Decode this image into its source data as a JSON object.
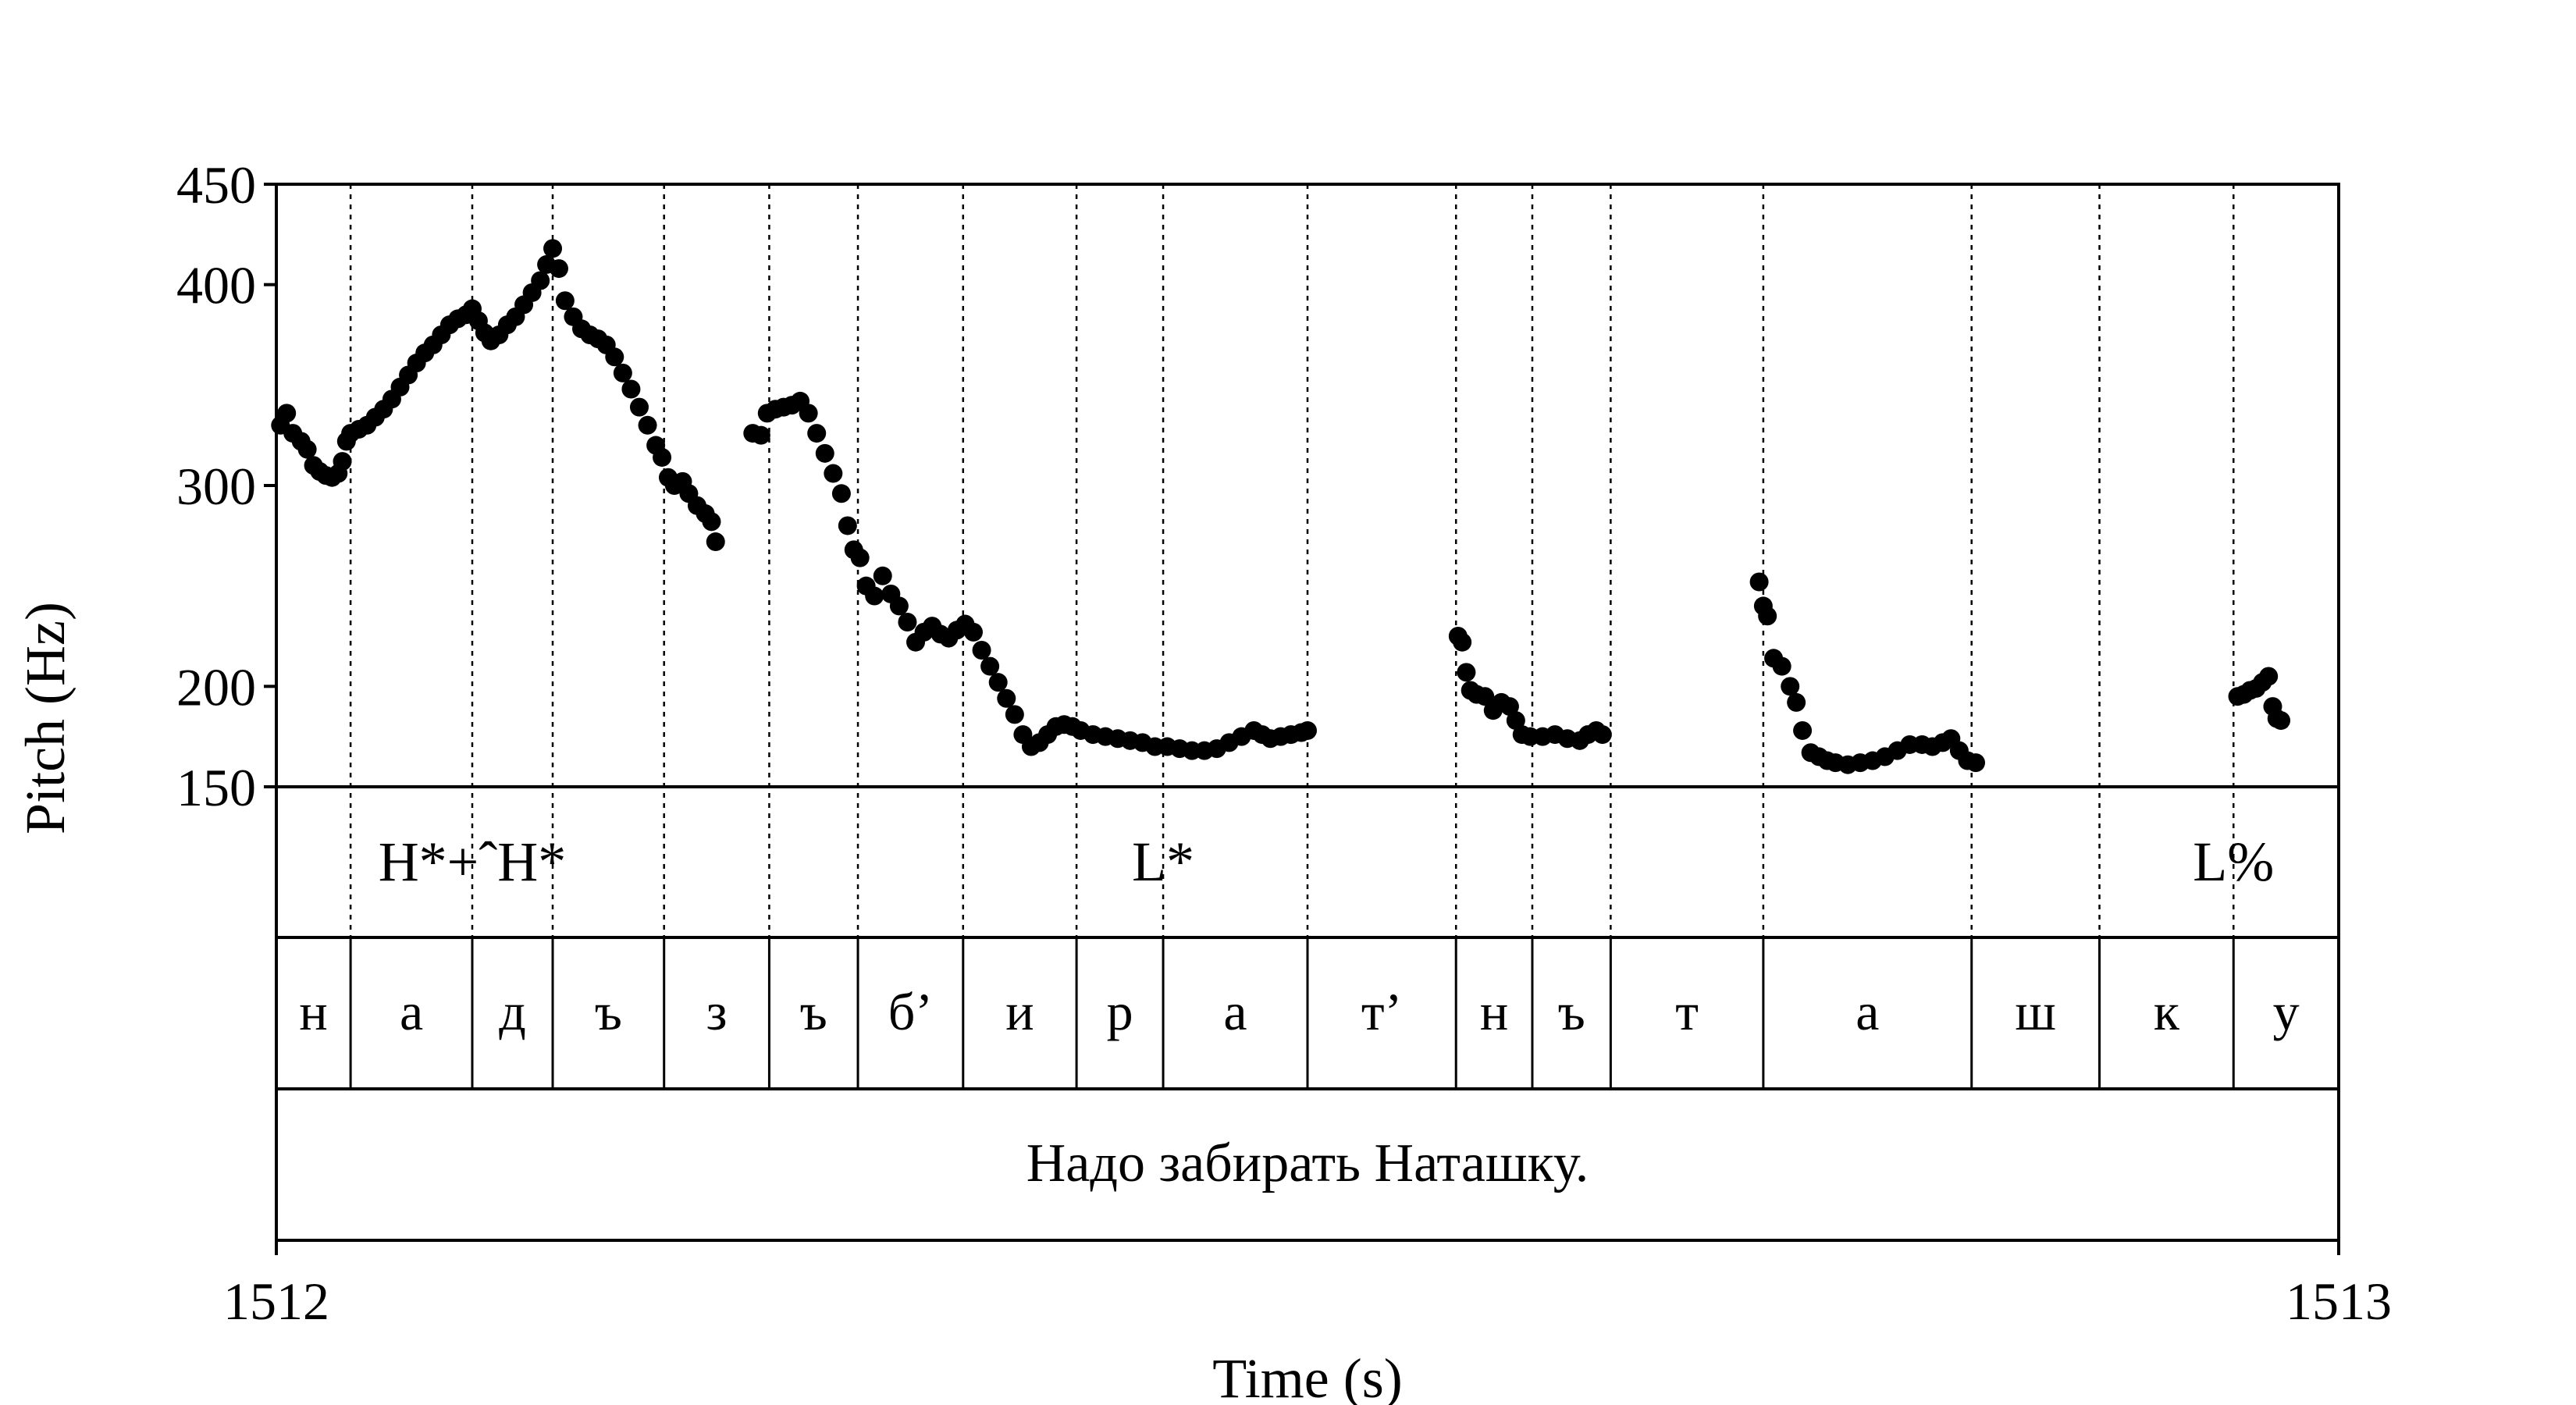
{
  "chart_data": {
    "type": "scatter",
    "xlabel": "Time (s)",
    "ylabel": "Pitch (Hz)",
    "xlim": [
      1512,
      1513
    ],
    "ylim": [
      150,
      450
    ],
    "x_ticks": [
      "1512",
      "1513"
    ],
    "y_ticks": [
      {
        "value": 150,
        "label": "150"
      },
      {
        "value": 200,
        "label": "200"
      },
      {
        "value": 300,
        "label": "300"
      },
      {
        "value": 400,
        "label": "400"
      },
      {
        "value": 450,
        "label": "450"
      }
    ],
    "boundaries": [
      1512.036,
      1512.095,
      1512.134,
      1512.188,
      1512.239,
      1512.282,
      1512.333,
      1512.388,
      1512.43,
      1512.5,
      1512.572,
      1512.609,
      1512.647,
      1512.721,
      1512.822,
      1512.884,
      1512.949
    ],
    "tones": [
      {
        "label": "H*+ˆH*",
        "t": 1512.095
      },
      {
        "label": "L*",
        "t": 1512.43
      },
      {
        "label": "L%",
        "t": 1512.949
      }
    ],
    "segments": [
      {
        "label": "н",
        "start": 1512.0,
        "end": 1512.036
      },
      {
        "label": "а",
        "start": 1512.036,
        "end": 1512.095
      },
      {
        "label": "д",
        "start": 1512.095,
        "end": 1512.134
      },
      {
        "label": "ъ",
        "start": 1512.134,
        "end": 1512.188
      },
      {
        "label": "з",
        "start": 1512.188,
        "end": 1512.239
      },
      {
        "label": "ъ",
        "start": 1512.239,
        "end": 1512.282
      },
      {
        "label": "б’",
        "start": 1512.282,
        "end": 1512.333
      },
      {
        "label": "и",
        "start": 1512.333,
        "end": 1512.388
      },
      {
        "label": "р",
        "start": 1512.388,
        "end": 1512.43
      },
      {
        "label": "а",
        "start": 1512.43,
        "end": 1512.5
      },
      {
        "label": "т’",
        "start": 1512.5,
        "end": 1512.572
      },
      {
        "label": "н",
        "start": 1512.572,
        "end": 1512.609
      },
      {
        "label": "ъ",
        "start": 1512.609,
        "end": 1512.647
      },
      {
        "label": "т",
        "start": 1512.647,
        "end": 1512.721
      },
      {
        "label": "а",
        "start": 1512.721,
        "end": 1512.822
      },
      {
        "label": "ш",
        "start": 1512.822,
        "end": 1512.884
      },
      {
        "label": "к",
        "start": 1512.884,
        "end": 1512.949
      },
      {
        "label": "у",
        "start": 1512.949,
        "end": 1513.0
      }
    ],
    "sentence": "Надо забирать Наташку.",
    "pitch_track": [
      [
        [
          1512.002,
          330
        ],
        [
          1512.005,
          336
        ],
        [
          1512.008,
          326
        ],
        [
          1512.012,
          322
        ],
        [
          1512.015,
          318
        ],
        [
          1512.018,
          310
        ],
        [
          1512.021,
          307
        ],
        [
          1512.024,
          305
        ],
        [
          1512.027,
          304
        ],
        [
          1512.03,
          306
        ],
        [
          1512.032,
          312
        ],
        [
          1512.034,
          322
        ],
        [
          1512.036,
          326
        ],
        [
          1512.04,
          328
        ],
        [
          1512.044,
          330
        ],
        [
          1512.048,
          334
        ],
        [
          1512.052,
          338
        ],
        [
          1512.056,
          343
        ],
        [
          1512.06,
          349
        ],
        [
          1512.064,
          355
        ],
        [
          1512.068,
          361
        ],
        [
          1512.072,
          366
        ],
        [
          1512.076,
          370
        ],
        [
          1512.08,
          375
        ],
        [
          1512.084,
          380
        ],
        [
          1512.088,
          383
        ],
        [
          1512.092,
          385
        ],
        [
          1512.095,
          388
        ],
        [
          1512.098,
          382
        ],
        [
          1512.101,
          376
        ],
        [
          1512.104,
          372
        ],
        [
          1512.108,
          375
        ],
        [
          1512.112,
          380
        ],
        [
          1512.116,
          384
        ],
        [
          1512.12,
          390
        ],
        [
          1512.124,
          396
        ],
        [
          1512.128,
          402
        ],
        [
          1512.131,
          410
        ],
        [
          1512.134,
          418
        ],
        [
          1512.137,
          408
        ],
        [
          1512.14,
          392
        ],
        [
          1512.144,
          384
        ],
        [
          1512.148,
          378
        ],
        [
          1512.152,
          375
        ],
        [
          1512.156,
          373
        ],
        [
          1512.16,
          370
        ],
        [
          1512.164,
          364
        ],
        [
          1512.168,
          356
        ],
        [
          1512.172,
          348
        ],
        [
          1512.176,
          339
        ],
        [
          1512.18,
          330
        ],
        [
          1512.184,
          320
        ],
        [
          1512.187,
          314
        ],
        [
          1512.19,
          304
        ],
        [
          1512.193,
          300
        ],
        [
          1512.197,
          302
        ],
        [
          1512.2,
          296
        ],
        [
          1512.204,
          290
        ],
        [
          1512.208,
          286
        ],
        [
          1512.211,
          282
        ],
        [
          1512.213,
          272
        ]
      ],
      [
        [
          1512.231,
          326
        ],
        [
          1512.235,
          325
        ],
        [
          1512.238,
          336
        ],
        [
          1512.242,
          338
        ],
        [
          1512.246,
          339
        ],
        [
          1512.25,
          340
        ],
        [
          1512.254,
          342
        ],
        [
          1512.258,
          336
        ],
        [
          1512.262,
          326
        ],
        [
          1512.266,
          316
        ],
        [
          1512.27,
          306
        ],
        [
          1512.274,
          296
        ],
        [
          1512.277,
          280
        ],
        [
          1512.28,
          268
        ],
        [
          1512.283,
          264
        ],
        [
          1512.286,
          250
        ],
        [
          1512.29,
          245
        ],
        [
          1512.294,
          255
        ],
        [
          1512.298,
          246
        ],
        [
          1512.302,
          240
        ],
        [
          1512.306,
          232
        ],
        [
          1512.31,
          222
        ],
        [
          1512.314,
          227
        ],
        [
          1512.318,
          230
        ],
        [
          1512.322,
          226
        ],
        [
          1512.326,
          224
        ],
        [
          1512.33,
          228
        ],
        [
          1512.334,
          231
        ],
        [
          1512.338,
          227
        ],
        [
          1512.342,
          218
        ],
        [
          1512.346,
          210
        ],
        [
          1512.35,
          202
        ],
        [
          1512.354,
          194
        ],
        [
          1512.358,
          186
        ],
        [
          1512.362,
          176
        ],
        [
          1512.366,
          170
        ],
        [
          1512.37,
          172
        ],
        [
          1512.374,
          176
        ],
        [
          1512.378,
          180
        ],
        [
          1512.382,
          181
        ],
        [
          1512.386,
          180
        ],
        [
          1512.39,
          178
        ],
        [
          1512.396,
          176
        ],
        [
          1512.402,
          175
        ],
        [
          1512.408,
          174
        ],
        [
          1512.414,
          173
        ],
        [
          1512.42,
          172
        ],
        [
          1512.426,
          170
        ],
        [
          1512.432,
          170
        ],
        [
          1512.438,
          169
        ],
        [
          1512.444,
          168
        ],
        [
          1512.45,
          168
        ],
        [
          1512.456,
          169
        ],
        [
          1512.462,
          172
        ],
        [
          1512.468,
          175
        ],
        [
          1512.474,
          178
        ],
        [
          1512.478,
          176
        ],
        [
          1512.482,
          174
        ],
        [
          1512.487,
          175
        ],
        [
          1512.492,
          176
        ],
        [
          1512.497,
          177
        ],
        [
          1512.5,
          178
        ]
      ],
      [
        [
          1512.573,
          225
        ],
        [
          1512.575,
          222
        ],
        [
          1512.577,
          207
        ],
        [
          1512.579,
          198
        ],
        [
          1512.582,
          196
        ],
        [
          1512.586,
          195
        ],
        [
          1512.59,
          188
        ],
        [
          1512.594,
          192
        ],
        [
          1512.598,
          190
        ],
        [
          1512.601,
          183
        ],
        [
          1512.604,
          176
        ],
        [
          1512.608,
          175
        ],
        [
          1512.614,
          175
        ],
        [
          1512.62,
          176
        ],
        [
          1512.626,
          174
        ],
        [
          1512.632,
          173
        ],
        [
          1512.636,
          176
        ],
        [
          1512.64,
          178
        ],
        [
          1512.643,
          176
        ]
      ],
      [
        [
          1512.719,
          252
        ],
        [
          1512.721,
          240
        ],
        [
          1512.723,
          235
        ],
        [
          1512.726,
          214
        ],
        [
          1512.73,
          210
        ],
        [
          1512.734,
          200
        ],
        [
          1512.737,
          192
        ],
        [
          1512.74,
          178
        ],
        [
          1512.744,
          167
        ],
        [
          1512.748,
          165
        ],
        [
          1512.752,
          163
        ],
        [
          1512.756,
          162
        ],
        [
          1512.762,
          161
        ],
        [
          1512.768,
          162
        ],
        [
          1512.774,
          163
        ],
        [
          1512.78,
          165
        ],
        [
          1512.786,
          168
        ],
        [
          1512.792,
          171
        ],
        [
          1512.798,
          171
        ],
        [
          1512.803,
          170
        ],
        [
          1512.808,
          172
        ],
        [
          1512.812,
          174
        ],
        [
          1512.816,
          168
        ],
        [
          1512.82,
          163
        ],
        [
          1512.824,
          162
        ]
      ],
      [
        [
          1512.951,
          195
        ],
        [
          1512.954,
          196
        ],
        [
          1512.957,
          198
        ],
        [
          1512.96,
          199
        ],
        [
          1512.963,
          202
        ],
        [
          1512.966,
          205
        ],
        [
          1512.968,
          190
        ],
        [
          1512.97,
          184
        ],
        [
          1512.972,
          183
        ]
      ]
    ]
  }
}
